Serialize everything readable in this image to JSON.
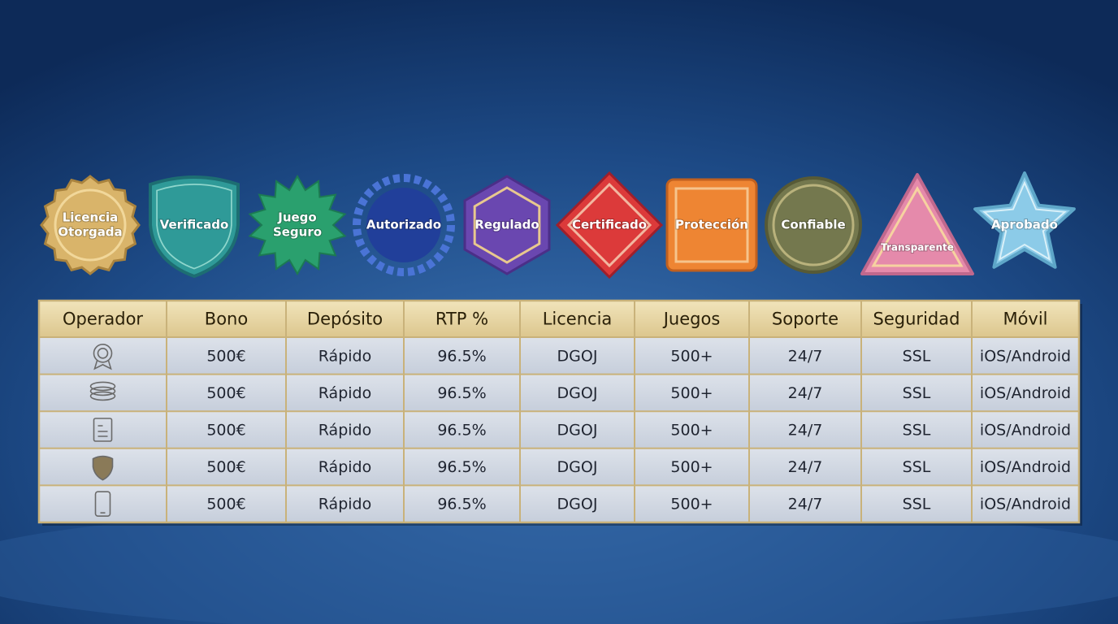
{
  "badges": [
    {
      "lines": [
        "Licencia",
        "Otorgada"
      ]
    },
    {
      "lines": [
        "Verificado"
      ]
    },
    {
      "lines": [
        "Juego",
        "Seguro"
      ]
    },
    {
      "lines": [
        "Autorizado"
      ]
    },
    {
      "lines": [
        "Regulado"
      ]
    },
    {
      "lines": [
        "Certificado"
      ]
    },
    {
      "lines": [
        "Protección"
      ]
    },
    {
      "lines": [
        "Confiable"
      ]
    },
    {
      "lines": [
        "Transparente"
      ]
    },
    {
      "lines": [
        "Aprobado"
      ]
    }
  ],
  "table": {
    "headers": [
      "Operador",
      "Bono",
      "Depósito",
      "RTP %",
      "Licencia",
      "Juegos",
      "Soporte",
      "Seguridad",
      "Móvil"
    ],
    "rows": [
      [
        "500€",
        "Rápido",
        "96.5%",
        "DGOJ",
        "500+",
        "24/7",
        "SSL",
        "iOS/Android"
      ],
      [
        "500€",
        "Rápido",
        "96.5%",
        "DGOJ",
        "500+",
        "24/7",
        "SSL",
        "iOS/Android"
      ],
      [
        "500€",
        "Rápido",
        "96.5%",
        "DGOJ",
        "500+",
        "24/7",
        "SSL",
        "iOS/Android"
      ],
      [
        "500€",
        "Rápido",
        "96.5%",
        "DGOJ",
        "500+",
        "24/7",
        "SSL",
        "iOS/Android"
      ],
      [
        "500€",
        "Rápido",
        "96.5%",
        "DGOJ",
        "500+",
        "24/7",
        "SSL",
        "iOS/Android"
      ]
    ]
  }
}
